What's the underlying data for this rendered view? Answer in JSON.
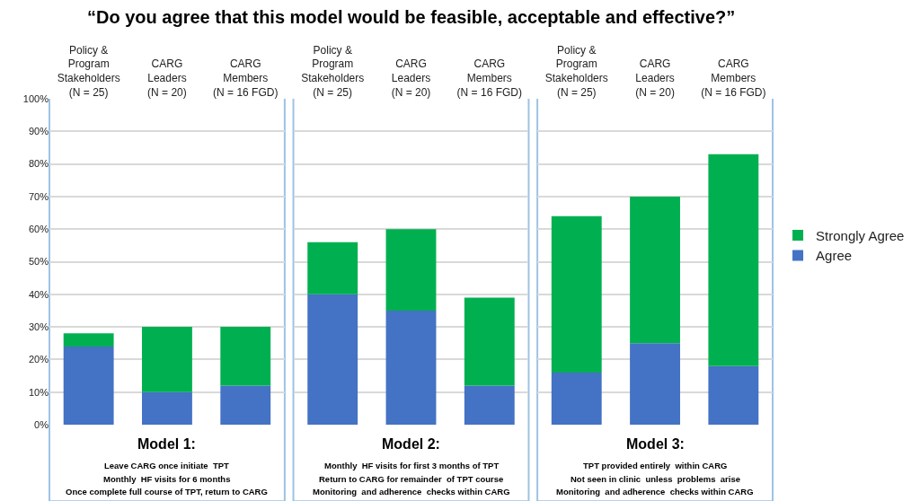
{
  "chart_data": [
    {
      "type": "bar",
      "stacked": true,
      "title": "“Do you agree that this model would be feasible, acceptable and effective?”",
      "xlabel": "Model 1:",
      "categories": [
        "Policy &\nProgram\nStakeholders\n(N = 25)",
        "CARG\nLeaders\n(N = 20)",
        "CARG\nMembers\n(N = 16 FGD)"
      ],
      "series": [
        {
          "name": "Agree",
          "color": "#4472c4",
          "values": [
            24,
            10,
            12
          ]
        },
        {
          "name": "Strongly Agree",
          "color": "#00b050",
          "values": [
            4,
            20,
            18
          ]
        }
      ],
      "ylim": [
        0,
        100
      ],
      "yticks": [
        {
          "value": 0,
          "label": "0%"
        },
        {
          "value": 10,
          "label": "10%"
        },
        {
          "value": 20,
          "label": "20%"
        },
        {
          "value": 30,
          "label": "30%"
        },
        {
          "value": 40,
          "label": "40%"
        },
        {
          "value": 50,
          "label": "50%"
        },
        {
          "value": 60,
          "label": "60%"
        },
        {
          "value": 70,
          "label": "70%"
        },
        {
          "value": 80,
          "label": "80%"
        },
        {
          "value": 90,
          "label": "90%"
        },
        {
          "value": 100,
          "label": "100%"
        }
      ],
      "grid": "y",
      "legend": "right",
      "annotations": [
        "Leave CARG once initiate  TPT",
        "Monthly  HF visits for 6 months",
        "Once complete full course of TPT, return to CARG"
      ]
    },
    {
      "type": "bar",
      "stacked": true,
      "xlabel": "Model 2:",
      "categories": [
        "Policy &\nProgram\nStakeholders\n(N = 25)",
        "CARG\nLeaders\n(N = 20)",
        "CARG\nMembers\n(N = 16 FGD)"
      ],
      "series": [
        {
          "color": "#4472c4",
          "values": [
            40,
            35,
            12
          ]
        },
        {
          "color": "#00b050",
          "values": [
            16,
            25,
            27
          ]
        }
      ],
      "ylim": [
        0,
        100
      ],
      "yticks": [
        {
          "value": 0,
          "label": null
        },
        {
          "value": 10,
          "label": null
        },
        {
          "value": 20,
          "label": null
        },
        {
          "value": 30,
          "label": null
        },
        {
          "value": 40,
          "label": null
        },
        {
          "value": 50,
          "label": null
        },
        {
          "value": 60,
          "label": null
        },
        {
          "value": 70,
          "label": null
        },
        {
          "value": 80,
          "label": null
        },
        {
          "value": 90,
          "label": null
        },
        {
          "value": 100,
          "label": null
        }
      ],
      "tick_labels": "x",
      "grid": "y",
      "annotations": [
        "Monthly  HF visits for first 3 months of TPT",
        "Return to CARG for remainder  of TPT course",
        "Monitoring  and adherence  checks within CARG"
      ]
    },
    {
      "type": "bar",
      "stacked": true,
      "xlabel": "Model 3:",
      "categories": [
        "Policy &\nProgram\nStakeholders\n(N = 25)",
        "CARG\nLeaders\n(N = 20)",
        "CARG\nMembers\n(N = 16 FGD)"
      ],
      "series": [
        {
          "color": "#4472c4",
          "values": [
            16,
            25,
            18
          ]
        },
        {
          "color": "#00b050",
          "values": [
            48,
            45,
            65
          ]
        }
      ],
      "ylim": [
        0,
        100
      ],
      "yticks": [
        {
          "value": 0,
          "label": null
        },
        {
          "value": 10,
          "label": null
        },
        {
          "value": 20,
          "label": null
        },
        {
          "value": 30,
          "label": null
        },
        {
          "value": 40,
          "label": null
        },
        {
          "value": 50,
          "label": null
        },
        {
          "value": 60,
          "label": null
        },
        {
          "value": 70,
          "label": null
        },
        {
          "value": 80,
          "label": null
        },
        {
          "value": 90,
          "label": null
        },
        {
          "value": 100,
          "label": null
        }
      ],
      "tick_labels": "x",
      "grid": "y",
      "annotations": [
        "TPT provided entirely  within CARG",
        "Not seen in clinic  unless  problems  arise",
        "Monitoring  and adherence  checks within CARG"
      ]
    }
  ]
}
